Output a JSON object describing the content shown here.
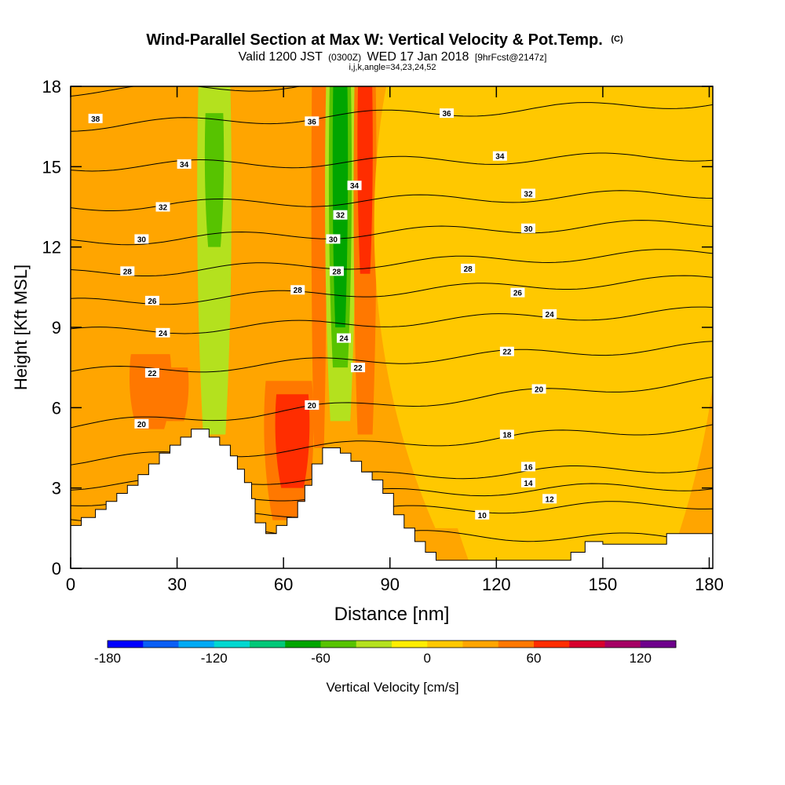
{
  "header": {
    "title": "Wind-Parallel Section at Max W: Vertical Velocity & Pot.Temp.",
    "title_mark": "(C)",
    "valid_prefix": "Valid 1200 JST",
    "valid_utc": "(0300Z)",
    "valid_date": "WED 17 Jan 2018",
    "forecast": "[9hrFcst@2147z]",
    "indices": "i,j,k,angle=34,23,24,52"
  },
  "chart_data": {
    "type": "heatmap",
    "xlabel": "Distance [nm]",
    "ylabel": "Height [Kft MSL]",
    "xlim": [
      0,
      181
    ],
    "ylim": [
      0,
      18
    ],
    "x_ticks": [
      0,
      30,
      60,
      90,
      120,
      150,
      180
    ],
    "y_ticks": [
      0,
      3,
      6,
      9,
      12,
      15,
      18
    ],
    "terrain": [
      [
        0,
        1.6
      ],
      [
        3,
        1.6
      ],
      [
        3,
        1.9
      ],
      [
        7,
        1.9
      ],
      [
        7,
        2.2
      ],
      [
        10,
        2.2
      ],
      [
        10,
        2.5
      ],
      [
        13,
        2.5
      ],
      [
        13,
        2.8
      ],
      [
        16,
        2.8
      ],
      [
        16,
        3.1
      ],
      [
        19,
        3.1
      ],
      [
        19,
        3.5
      ],
      [
        22,
        3.5
      ],
      [
        22,
        3.9
      ],
      [
        25,
        3.9
      ],
      [
        25,
        4.3
      ],
      [
        28,
        4.3
      ],
      [
        28,
        4.6
      ],
      [
        31,
        4.6
      ],
      [
        31,
        4.9
      ],
      [
        34,
        4.9
      ],
      [
        34,
        5.2
      ],
      [
        39,
        5.2
      ],
      [
        39,
        4.9
      ],
      [
        42,
        4.9
      ],
      [
        42,
        4.6
      ],
      [
        45,
        4.6
      ],
      [
        45,
        4.2
      ],
      [
        47,
        4.2
      ],
      [
        47,
        3.7
      ],
      [
        49,
        3.7
      ],
      [
        49,
        3.2
      ],
      [
        51,
        3.2
      ],
      [
        51,
        2.6
      ],
      [
        52,
        2.6
      ],
      [
        52,
        1.7
      ],
      [
        55,
        1.7
      ],
      [
        55,
        1.3
      ],
      [
        58,
        1.3
      ],
      [
        58,
        1.6
      ],
      [
        61,
        1.6
      ],
      [
        61,
        1.9
      ],
      [
        64,
        1.9
      ],
      [
        64,
        2.5
      ],
      [
        66,
        2.5
      ],
      [
        66,
        3.1
      ],
      [
        68,
        3.1
      ],
      [
        68,
        3.9
      ],
      [
        71,
        3.9
      ],
      [
        71,
        4.5
      ],
      [
        76,
        4.5
      ],
      [
        76,
        4.3
      ],
      [
        79,
        4.3
      ],
      [
        79,
        4.0
      ],
      [
        82,
        4.0
      ],
      [
        82,
        3.6
      ],
      [
        85,
        3.6
      ],
      [
        85,
        3.3
      ],
      [
        88,
        3.3
      ],
      [
        88,
        2.8
      ],
      [
        91,
        2.8
      ],
      [
        91,
        2.0
      ],
      [
        94,
        2.0
      ],
      [
        94,
        1.5
      ],
      [
        97,
        1.5
      ],
      [
        97,
        1.0
      ],
      [
        100,
        1.0
      ],
      [
        100,
        0.6
      ],
      [
        103,
        0.6
      ],
      [
        103,
        0.3
      ],
      [
        107,
        0.3
      ],
      [
        107,
        0.3
      ],
      [
        141,
        0.3
      ],
      [
        141,
        0.6
      ],
      [
        145,
        0.6
      ],
      [
        145,
        1.0
      ],
      [
        150,
        1.0
      ],
      [
        150,
        0.9
      ],
      [
        157,
        0.9
      ],
      [
        157,
        0.9
      ],
      [
        168,
        0.9
      ],
      [
        168,
        1.3
      ],
      [
        181,
        1.3
      ]
    ],
    "w_bands": [
      {
        "x_start": 17,
        "x_end": 28,
        "y_bottom": 5.2,
        "y_top": 8,
        "w": 45
      },
      {
        "x_start": 26,
        "x_end": 33,
        "y_bottom": 5.5,
        "y_top": 7.5,
        "w": 55
      },
      {
        "x_start": 36,
        "x_end": 45,
        "y_bottom": 5,
        "y_top": 18,
        "w": -25
      },
      {
        "x_start": 37,
        "x_end": 44,
        "y_bottom": 9,
        "y_top": 17,
        "w": -40
      },
      {
        "x_start": 38,
        "x_end": 43,
        "y_bottom": 12,
        "y_top": 17,
        "w": -55
      },
      {
        "x_start": 55,
        "x_end": 68,
        "y_bottom": 1.8,
        "y_top": 7,
        "w": 50
      },
      {
        "x_start": 58,
        "x_end": 67,
        "y_bottom": 3,
        "y_top": 6.5,
        "w": 60
      },
      {
        "x_start": 68,
        "x_end": 72,
        "y_bottom": 4.5,
        "y_top": 18,
        "w": 45
      },
      {
        "x_start": 72,
        "x_end": 80,
        "y_bottom": 5.5,
        "y_top": 18,
        "w": -35
      },
      {
        "x_start": 73,
        "x_end": 79,
        "y_bottom": 7.5,
        "y_top": 18,
        "w": -55
      },
      {
        "x_start": 74,
        "x_end": 78,
        "y_bottom": 9,
        "y_top": 18,
        "w": -75
      },
      {
        "x_start": 80,
        "x_end": 86,
        "y_bottom": 5,
        "y_top": 18,
        "w": 45
      },
      {
        "x_start": 81,
        "x_end": 85,
        "y_bottom": 11,
        "y_top": 18,
        "w": 65
      },
      {
        "x_start": 89,
        "x_end": 181,
        "y_bottom": 1.5,
        "y_top": 18,
        "w": 15
      },
      {
        "x_start": 100,
        "x_end": 181,
        "y_bottom": 0.3,
        "y_top": 18,
        "w": 10
      },
      {
        "x_start": 105,
        "x_end": 125,
        "y_bottom": 8.5,
        "y_top": 18,
        "w": 0
      }
    ],
    "theta_contours": [
      {
        "level": 10,
        "y_left": 1.4,
        "y_right": 1.1
      },
      {
        "level": 12,
        "y_left": 1.9,
        "y_right": 2.4
      },
      {
        "level": 14,
        "y_left": 2.5,
        "y_right": 3.1
      },
      {
        "level": 16,
        "y_left": 3.1,
        "y_right": 3.8
      },
      {
        "level": 18,
        "y_left": 4.0,
        "y_right": 5.3
      },
      {
        "level": 20,
        "y_left": 5.3,
        "y_right": 7.0
      },
      {
        "level": 22,
        "y_left": 7.3,
        "y_right": 8.3
      },
      {
        "level": 24,
        "y_left": 8.8,
        "y_right": 9.6
      },
      {
        "level": 26,
        "y_left": 9.9,
        "y_right": 10.8
      },
      {
        "level": 28,
        "y_left": 11.0,
        "y_right": 11.8
      },
      {
        "level": 30,
        "y_left": 12.2,
        "y_right": 12.9
      },
      {
        "level": 32,
        "y_left": 13.5,
        "y_right": 14.0
      },
      {
        "level": 34,
        "y_left": 15.0,
        "y_right": 15.4
      },
      {
        "level": 36,
        "y_left": 16.5,
        "y_right": 17.4
      },
      {
        "level": 38,
        "y_left": 17.8,
        "y_right": 18.5
      }
    ],
    "contour_labels": [
      {
        "text": "38",
        "x": 7,
        "y": 16.8
      },
      {
        "text": "34",
        "x": 32,
        "y": 15.1
      },
      {
        "text": "32",
        "x": 26,
        "y": 13.5
      },
      {
        "text": "30",
        "x": 20,
        "y": 12.3
      },
      {
        "text": "28",
        "x": 16,
        "y": 11.1
      },
      {
        "text": "26",
        "x": 23,
        "y": 10.0
      },
      {
        "text": "24",
        "x": 26,
        "y": 8.8
      },
      {
        "text": "22",
        "x": 23,
        "y": 7.3
      },
      {
        "text": "20",
        "x": 20,
        "y": 5.4
      },
      {
        "text": "36",
        "x": 68,
        "y": 16.7
      },
      {
        "text": "34",
        "x": 80,
        "y": 14.3
      },
      {
        "text": "32",
        "x": 76,
        "y": 13.2
      },
      {
        "text": "30",
        "x": 74,
        "y": 12.3
      },
      {
        "text": "28",
        "x": 75,
        "y": 11.1
      },
      {
        "text": "28",
        "x": 64,
        "y": 10.4
      },
      {
        "text": "24",
        "x": 77,
        "y": 8.6
      },
      {
        "text": "22",
        "x": 81,
        "y": 7.5
      },
      {
        "text": "20",
        "x": 68,
        "y": 6.1
      },
      {
        "text": "36",
        "x": 106,
        "y": 17.0
      },
      {
        "text": "34",
        "x": 121,
        "y": 15.4
      },
      {
        "text": "32",
        "x": 129,
        "y": 14.0
      },
      {
        "text": "30",
        "x": 129,
        "y": 12.7
      },
      {
        "text": "28",
        "x": 112,
        "y": 11.2
      },
      {
        "text": "26",
        "x": 126,
        "y": 10.3
      },
      {
        "text": "24",
        "x": 135,
        "y": 9.5
      },
      {
        "text": "22",
        "x": 123,
        "y": 8.1
      },
      {
        "text": "20",
        "x": 132,
        "y": 6.7
      },
      {
        "text": "18",
        "x": 123,
        "y": 5.0
      },
      {
        "text": "16",
        "x": 129,
        "y": 3.8
      },
      {
        "text": "14",
        "x": 129,
        "y": 3.2
      },
      {
        "text": "12",
        "x": 135,
        "y": 2.6
      },
      {
        "text": "10",
        "x": 116,
        "y": 2.0
      }
    ],
    "colorbar": {
      "label": "Vertical Velocity [cm/s]",
      "min": -180,
      "max": 140,
      "step": 20,
      "tick_labels": [
        -180,
        -120,
        -60,
        0,
        60,
        120
      ],
      "colors": [
        "#0000ff",
        "#0a5ff5",
        "#00aaf5",
        "#00d8d0",
        "#00c878",
        "#00a500",
        "#57c300",
        "#b4e11e",
        "#ffee00",
        "#ffc800",
        "#ffa500",
        "#ff7800",
        "#ff2d00",
        "#d7002d",
        "#a50064",
        "#6e008c"
      ]
    },
    "background_w": 25,
    "grid": false
  }
}
